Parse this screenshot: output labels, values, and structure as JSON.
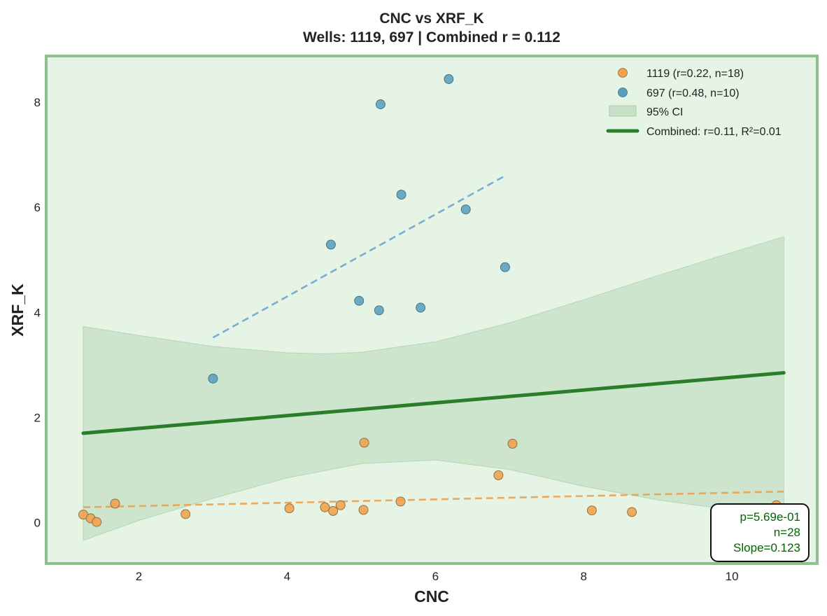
{
  "chart_data": {
    "type": "scatter",
    "title_line1": "CNC vs XRF_K",
    "title_line2": "Wells: 1119, 697 | Combined r = 0.112",
    "xlabel": "CNC",
    "ylabel": "XRF_K",
    "xlim": [
      0.75,
      11.15
    ],
    "ylim": [
      -0.78,
      8.88
    ],
    "xticks": [
      2,
      4,
      6,
      8,
      10
    ],
    "yticks": [
      0,
      2,
      4,
      6,
      8
    ],
    "grid": false,
    "legend_position": "top-right",
    "colors": {
      "background": "#e6f4e6",
      "frame": "#8fbf8f",
      "well_1119": "#f0a04b",
      "well_697": "#5a9fbd",
      "fit_1119": "#f0a04b",
      "fit_697": "#6fa6cf",
      "combined": "#2a7e2a",
      "ci": "#c7e0c7",
      "stats_text": "#006400"
    },
    "series": [
      {
        "name": "1119 (r=0.22, n=18)",
        "points": [
          [
            1.25,
            0.15
          ],
          [
            1.35,
            0.08
          ],
          [
            1.43,
            0.01
          ],
          [
            1.68,
            0.36
          ],
          [
            2.63,
            0.16
          ],
          [
            4.03,
            0.27
          ],
          [
            4.51,
            0.29
          ],
          [
            4.62,
            0.22
          ],
          [
            4.72,
            0.33
          ],
          [
            5.03,
            0.24
          ],
          [
            5.04,
            1.52
          ],
          [
            5.53,
            0.4
          ],
          [
            6.85,
            0.9
          ],
          [
            7.04,
            1.5
          ],
          [
            8.11,
            0.23
          ],
          [
            8.65,
            0.2
          ],
          [
            10.45,
            0.27
          ],
          [
            10.6,
            0.33
          ]
        ],
        "fit": [
          [
            1.25,
            0.29
          ],
          [
            10.7,
            0.59
          ]
        ]
      },
      {
        "name": "697 (r=0.48, n=10)",
        "points": [
          [
            3.0,
            2.74
          ],
          [
            4.59,
            5.29
          ],
          [
            4.97,
            4.22
          ],
          [
            5.24,
            4.04
          ],
          [
            5.26,
            7.96
          ],
          [
            5.54,
            6.24
          ],
          [
            5.8,
            4.09
          ],
          [
            6.18,
            8.44
          ],
          [
            6.41,
            5.96
          ],
          [
            6.94,
            4.86
          ]
        ],
        "fit": [
          [
            3.0,
            3.52
          ],
          [
            6.94,
            6.6
          ]
        ]
      }
    ],
    "combined_fit": {
      "name": "Combined: r=0.11, R²=0.01",
      "line": [
        [
          1.25,
          1.7
        ],
        [
          10.7,
          2.85
        ]
      ],
      "ci_label": "95% CI",
      "ci_upper": [
        [
          1.25,
          3.73
        ],
        [
          2.0,
          3.56
        ],
        [
          3.0,
          3.35
        ],
        [
          4.0,
          3.23
        ],
        [
          4.5,
          3.21
        ],
        [
          5.0,
          3.24
        ],
        [
          6.0,
          3.44
        ],
        [
          7.0,
          3.8
        ],
        [
          8.0,
          4.24
        ],
        [
          9.0,
          4.7
        ],
        [
          10.0,
          5.14
        ],
        [
          10.7,
          5.44
        ]
      ],
      "ci_lower": [
        [
          1.25,
          -0.34
        ],
        [
          2.0,
          0.04
        ],
        [
          3.0,
          0.46
        ],
        [
          4.0,
          0.85
        ],
        [
          5.0,
          1.12
        ],
        [
          6.0,
          1.19
        ],
        [
          7.0,
          1.01
        ],
        [
          8.0,
          0.69
        ],
        [
          9.0,
          0.43
        ],
        [
          10.0,
          0.24
        ],
        [
          10.7,
          0.25
        ]
      ]
    },
    "stats_box": [
      "p=5.69e-01",
      "n=28",
      "Slope=0.123"
    ]
  }
}
